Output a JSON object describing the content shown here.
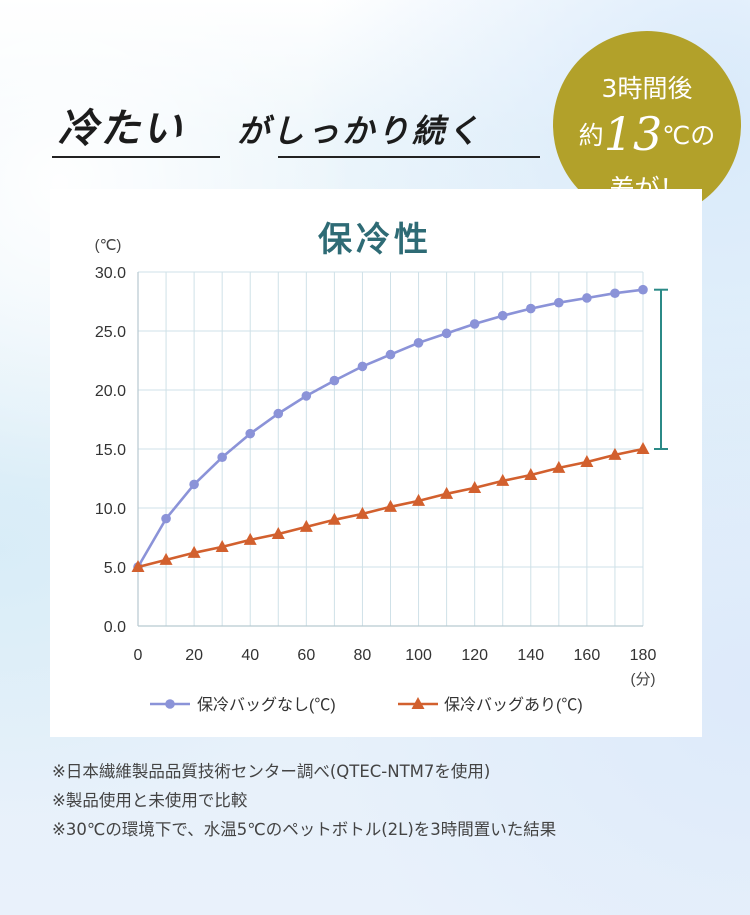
{
  "headline": {
    "part1": "冷たい",
    "part2": "がしっかり続く"
  },
  "badge": {
    "line1": "3時間後",
    "prefix": "約",
    "number": "13",
    "unit": "℃の",
    "line3": "差が！"
  },
  "chart_data": {
    "type": "line",
    "title": "保冷性",
    "ylabel": "(℃)",
    "xlabel": "(分)",
    "x": [
      0,
      10,
      20,
      30,
      40,
      50,
      60,
      70,
      80,
      90,
      100,
      110,
      120,
      130,
      140,
      150,
      160,
      170,
      180
    ],
    "x_ticks": [
      "0",
      "20",
      "40",
      "60",
      "80",
      "100",
      "120",
      "140",
      "160",
      "180"
    ],
    "y_ticks": [
      "0.0",
      "5.0",
      "10.0",
      "15.0",
      "20.0",
      "25.0",
      "30.0"
    ],
    "xlim": [
      0,
      180
    ],
    "ylim": [
      0,
      30
    ],
    "grid": true,
    "legend_position": "bottom",
    "series": [
      {
        "name": "保冷バッグなし(℃)",
        "color": "#8b93d8",
        "marker": "circle",
        "values": [
          5.0,
          9.1,
          12.0,
          14.3,
          16.3,
          18.0,
          19.5,
          20.8,
          22.0,
          23.0,
          24.0,
          24.8,
          25.6,
          26.3,
          26.9,
          27.4,
          27.8,
          28.2,
          28.5
        ]
      },
      {
        "name": "保冷バッグあり(℃)",
        "color": "#d2602e",
        "marker": "triangle",
        "values": [
          5.0,
          5.6,
          6.2,
          6.7,
          7.3,
          7.8,
          8.4,
          9.0,
          9.5,
          10.1,
          10.6,
          11.2,
          11.7,
          12.3,
          12.8,
          13.4,
          13.9,
          14.5,
          15.0
        ]
      }
    ],
    "difference_bracket": {
      "from": 15.0,
      "to": 28.5,
      "color": "#2b8a87"
    }
  },
  "notes": [
    "※日本繊維製品品質技術センター調べ(QTEC-NTM7を使用)",
    "※製品使用と未使用で比較",
    "※30℃の環境下で、水温5℃のペットボトル(2L)を3時間置いた結果"
  ]
}
